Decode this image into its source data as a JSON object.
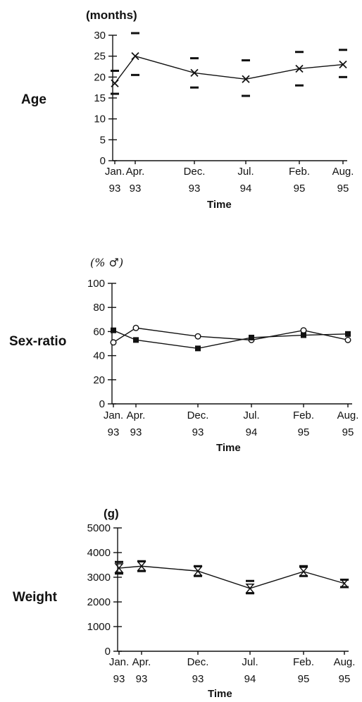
{
  "chart_data": [
    {
      "type": "line",
      "title": "",
      "row_label": "Age",
      "ylabel": "(months)",
      "xlabel": "Time",
      "categories": [
        "Jan.\n93",
        "Apr.\n93",
        "Dec.\n93",
        "Jul.\n94",
        "Feb.\n95",
        "Aug.\n95"
      ],
      "ylim": [
        0,
        30
      ],
      "yticks": [
        0,
        5,
        10,
        15,
        20,
        25,
        30
      ],
      "grid": false,
      "series": [
        {
          "marker": "x",
          "values": [
            18.5,
            25,
            21,
            19.5,
            22,
            23
          ],
          "error_low": [
            16,
            20.5,
            17.5,
            15.5,
            18,
            20
          ],
          "error_high": [
            21.5,
            30.5,
            24.5,
            24,
            26,
            26.5
          ]
        }
      ]
    },
    {
      "type": "line",
      "title": "",
      "row_label": "Sex-ratio",
      "ylabel": "(% ♂)",
      "xlabel": "Time",
      "categories": [
        "Jan.\n93",
        "Apr.\n93",
        "Dec.\n93",
        "Jul.\n94",
        "Feb.\n95",
        "Aug.\n95"
      ],
      "ylim": [
        0,
        100
      ],
      "yticks": [
        0,
        20,
        40,
        60,
        80,
        100
      ],
      "grid": false,
      "series": [
        {
          "marker": "open-circle",
          "values": [
            51,
            63,
            56,
            53,
            61,
            53
          ]
        },
        {
          "marker": "filled-square",
          "values": [
            61,
            53,
            46,
            55,
            57,
            58
          ]
        }
      ]
    },
    {
      "type": "line",
      "title": "",
      "row_label": "Weight",
      "ylabel": "(g)",
      "xlabel": "Time",
      "categories": [
        "Jan.\n93",
        "Apr.\n93",
        "Dec.\n93",
        "Jul.\n94",
        "Feb.\n95",
        "Aug.\n95"
      ],
      "ylim": [
        0,
        5000
      ],
      "yticks": [
        0,
        1000,
        2000,
        3000,
        4000,
        5000
      ],
      "grid": false,
      "series": [
        {
          "marker": "hourglass",
          "values": [
            3370,
            3450,
            3250,
            2550,
            3230,
            2750
          ],
          "error_low": [
            3150,
            3250,
            3050,
            2350,
            3050,
            2600
          ],
          "error_high": [
            3620,
            3650,
            3450,
            2850,
            3450,
            2900
          ]
        }
      ]
    }
  ]
}
